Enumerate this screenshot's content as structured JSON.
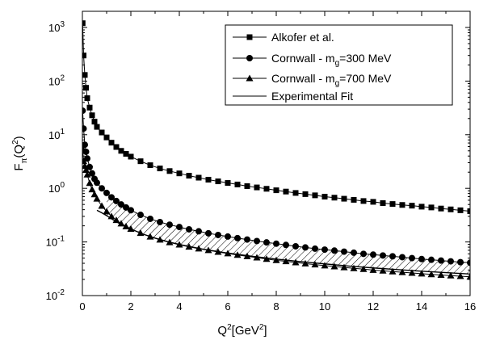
{
  "chart_data": {
    "type": "line",
    "xlabel": "Q²[GeV²]",
    "ylabel": "Fπ(Q²)",
    "xlim": [
      0,
      16
    ],
    "ylim": [
      0.01,
      2000
    ],
    "yscale": "log",
    "x_ticks": [
      0,
      2,
      4,
      6,
      8,
      10,
      12,
      14,
      16
    ],
    "y_ticks": [
      {
        "value": 0.01,
        "base": "10",
        "exp": "-2"
      },
      {
        "value": 0.1,
        "base": "10",
        "exp": "-1"
      },
      {
        "value": 1,
        "base": "10",
        "exp": "0"
      },
      {
        "value": 10,
        "base": "10",
        "exp": "1"
      },
      {
        "value": 100,
        "base": "10",
        "exp": "2"
      },
      {
        "value": 1000,
        "base": "10",
        "exp": "3"
      }
    ],
    "legend_position": "top-right",
    "series": [
      {
        "name": "Alkofer et al.",
        "marker": "square",
        "x": [
          0.01,
          0.05,
          0.1,
          0.15,
          0.2,
          0.3,
          0.4,
          0.5,
          0.6,
          0.8,
          1.0,
          1.2,
          1.4,
          1.6,
          1.8,
          2.0,
          2.4,
          2.8,
          3.2,
          3.6,
          4.0,
          4.4,
          4.8,
          5.2,
          5.6,
          6.0,
          6.4,
          6.8,
          7.2,
          7.6,
          8.0,
          8.4,
          8.8,
          9.2,
          9.6,
          10.0,
          10.4,
          10.8,
          11.2,
          11.6,
          12.0,
          12.4,
          12.8,
          13.2,
          13.6,
          14.0,
          14.4,
          14.8,
          15.2,
          15.6,
          16.0
        ],
        "y": [
          1200,
          300,
          130,
          75,
          48,
          32,
          23,
          17.5,
          14,
          11,
          8.9,
          7.1,
          5.9,
          5.0,
          4.4,
          3.9,
          3.2,
          2.7,
          2.35,
          2.1,
          1.9,
          1.72,
          1.58,
          1.45,
          1.35,
          1.26,
          1.18,
          1.1,
          1.04,
          0.98,
          0.92,
          0.87,
          0.82,
          0.78,
          0.74,
          0.7,
          0.67,
          0.64,
          0.61,
          0.58,
          0.56,
          0.53,
          0.51,
          0.49,
          0.475,
          0.455,
          0.44,
          0.42,
          0.405,
          0.39,
          0.375
        ]
      },
      {
        "name": "Cornwall - mg=300 MeV",
        "marker": "circle",
        "x": [
          0.01,
          0.05,
          0.1,
          0.15,
          0.2,
          0.3,
          0.4,
          0.5,
          0.6,
          0.8,
          1.0,
          1.2,
          1.4,
          1.6,
          1.8,
          2.0,
          2.4,
          2.8,
          3.2,
          3.6,
          4.0,
          4.4,
          4.8,
          5.2,
          5.6,
          6.0,
          6.4,
          6.8,
          7.2,
          7.6,
          8.0,
          8.4,
          8.8,
          9.2,
          9.6,
          10.0,
          10.4,
          10.8,
          11.2,
          11.6,
          12.0,
          12.4,
          12.8,
          13.2,
          13.6,
          14.0,
          14.4,
          14.8,
          15.2,
          15.6,
          16.0
        ],
        "y": [
          28,
          13,
          6.5,
          4.8,
          3.6,
          2.5,
          1.9,
          1.5,
          1.27,
          1.0,
          0.82,
          0.68,
          0.58,
          0.5,
          0.44,
          0.39,
          0.32,
          0.27,
          0.235,
          0.21,
          0.19,
          0.172,
          0.158,
          0.145,
          0.135,
          0.126,
          0.118,
          0.111,
          0.104,
          0.098,
          0.093,
          0.088,
          0.083,
          0.079,
          0.075,
          0.072,
          0.069,
          0.066,
          0.063,
          0.06,
          0.058,
          0.056,
          0.054,
          0.052,
          0.05,
          0.048,
          0.0465,
          0.045,
          0.0435,
          0.042,
          0.041
        ]
      },
      {
        "name": "Cornwall - mg=700 MeV",
        "marker": "triangle",
        "x": [
          0.01,
          0.05,
          0.1,
          0.15,
          0.2,
          0.3,
          0.4,
          0.5,
          0.6,
          0.8,
          1.0,
          1.2,
          1.4,
          1.6,
          1.8,
          2.0,
          2.4,
          2.8,
          3.2,
          3.6,
          4.0,
          4.4,
          4.8,
          5.2,
          5.6,
          6.0,
          6.4,
          6.8,
          7.2,
          7.6,
          8.0,
          8.4,
          8.8,
          9.2,
          9.6,
          10.0,
          10.4,
          10.8,
          11.2,
          11.6,
          12.0,
          12.4,
          12.8,
          13.2,
          13.6,
          14.0,
          14.4,
          14.8,
          15.2,
          15.6,
          16.0
        ],
        "y": [
          5.5,
          3.2,
          2.6,
          2.2,
          1.8,
          1.25,
          0.95,
          0.77,
          0.64,
          0.47,
          0.37,
          0.3,
          0.255,
          0.22,
          0.195,
          0.175,
          0.146,
          0.125,
          0.11,
          0.098,
          0.089,
          0.081,
          0.075,
          0.07,
          0.065,
          0.061,
          0.057,
          0.054,
          0.051,
          0.048,
          0.0455,
          0.0435,
          0.0415,
          0.0395,
          0.0378,
          0.0362,
          0.0348,
          0.0335,
          0.0323,
          0.0311,
          0.03,
          0.029,
          0.0281,
          0.0272,
          0.0264,
          0.0256,
          0.0249,
          0.0242,
          0.0236,
          0.023,
          0.0224
        ]
      },
      {
        "name": "Experimental Fit",
        "marker": "none",
        "x": [
          0.6,
          0.8,
          1.0,
          1.2,
          1.5,
          2.0,
          2.5,
          3.0,
          3.5,
          4.0,
          5.0,
          6.0,
          7.0,
          8.0,
          9.0,
          10.0,
          11.0,
          12.0,
          13.0,
          14.0,
          15.0,
          16.0
        ],
        "y": [
          0.39,
          0.35,
          0.31,
          0.27,
          0.225,
          0.175,
          0.14,
          0.118,
          0.102,
          0.09,
          0.073,
          0.062,
          0.054,
          0.048,
          0.043,
          0.039,
          0.0355,
          0.0328,
          0.0305,
          0.0285,
          0.0268,
          0.0252
        ]
      }
    ]
  }
}
